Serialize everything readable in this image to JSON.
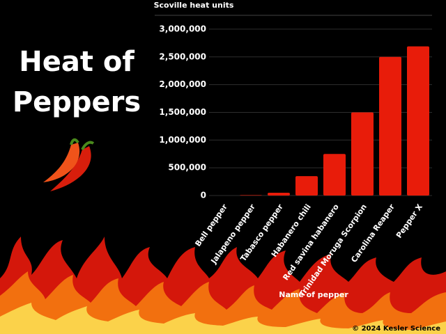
{
  "chart_data": {
    "type": "bar",
    "title": "Heat of Peppers",
    "y_label": "Scoville heat units",
    "x_label": "Name of pepper",
    "credit": "© 2024 Kesler Science",
    "categories": [
      "Bell pepper",
      "Jalapeno pepper",
      "Tabasco pepper",
      "Habanero chili",
      "Red savina habanero",
      "Trinidad Moruga Scorpion",
      "Carolina Reaper",
      "Pepper X"
    ],
    "values": [
      0,
      8000,
      50000,
      350000,
      750000,
      1500000,
      2500000,
      2690000
    ],
    "color": "#e81c0a",
    "ylim": [
      0,
      3250000
    ],
    "yticks": [
      0,
      {
        "value": 500000,
        "label": "500,000"
      },
      {
        "value": 1000000,
        "label": "1,000,000"
      },
      {
        "value": 1500000,
        "label": "1,500,000"
      },
      {
        "value": 2000000,
        "label": "2,000,000"
      },
      {
        "value": 2500000,
        "label": "2,500,000"
      },
      {
        "value": 3000000,
        "label": "3,000,000"
      }
    ],
    "grid": true
  }
}
